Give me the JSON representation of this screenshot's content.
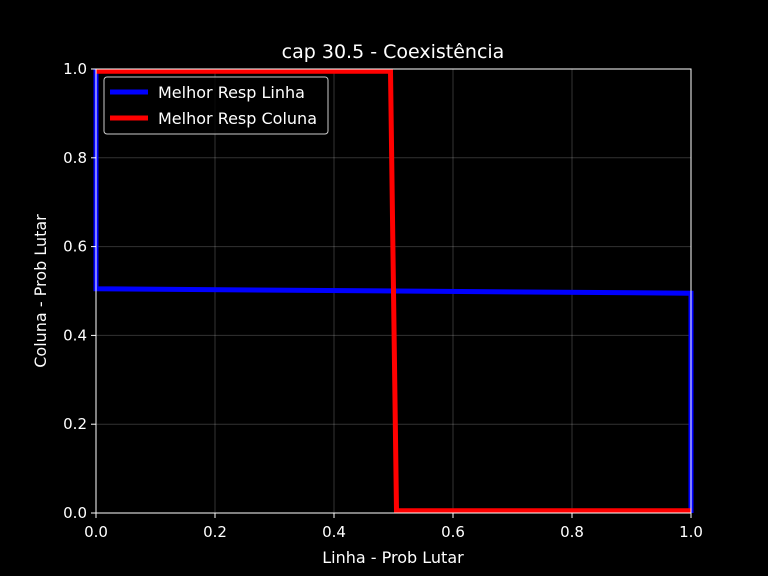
{
  "chart_data": {
    "type": "line",
    "title": "cap 30.5 - Coexistência",
    "xlabel": "Linha - Prob Lutar",
    "ylabel": "Coluna - Prob Lutar",
    "xlim": [
      0,
      1
    ],
    "ylim": [
      0,
      1
    ],
    "xticks": [
      "0.0",
      "0.2",
      "0.4",
      "0.6",
      "0.8",
      "1.0"
    ],
    "yticks": [
      "0.0",
      "0.2",
      "0.4",
      "0.6",
      "0.8",
      "1.0"
    ],
    "grid": true,
    "legend_position": "top-left",
    "series": [
      {
        "name": "Melhor Resp Linha",
        "color": "#0000ff",
        "x": [
          0.0,
          0.0,
          0.0,
          1.0,
          1.0,
          1.0
        ],
        "y": [
          1.0,
          0.505,
          0.505,
          0.495,
          0.495,
          0.0
        ]
      },
      {
        "name": "Melhor Resp Coluna",
        "color": "#ff0000",
        "x": [
          0.0,
          0.495,
          0.505,
          1.0
        ],
        "y": [
          0.995,
          0.995,
          0.005,
          0.005
        ]
      }
    ],
    "background": "#000000",
    "foreground": "#ffffff"
  }
}
